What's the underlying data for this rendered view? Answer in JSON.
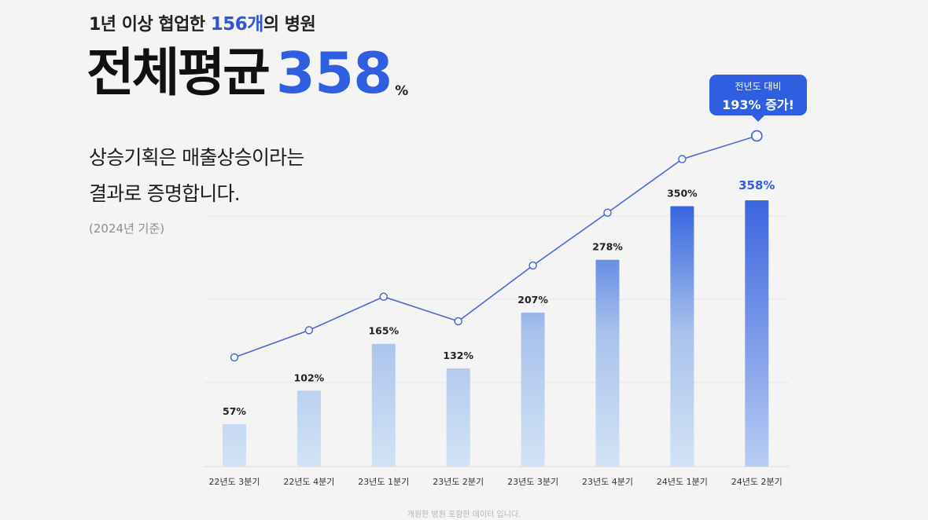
{
  "header": {
    "top_prefix": "1년 이상 협업한 ",
    "top_count": "156개",
    "top_suffix": "의 병원",
    "title_label": "전체평균",
    "title_value": "358",
    "title_unit": "%",
    "subtitle_line1": "상승기획은 매출상승이라는",
    "subtitle_line2": "결과로 증명합니다.",
    "basis": "(2024년 기준)"
  },
  "callout": {
    "line1": "전년도 대비",
    "line2": "193% 증가!"
  },
  "footnote": "개원한 병원 포함한 데이터 입니다.",
  "colors": {
    "accent": "#2f5ee0",
    "bar_light": "#d3e3f6",
    "bar_dark": "#2f5ee0",
    "line": "#4a69d6"
  },
  "chart_data": {
    "type": "bar",
    "categories": [
      "22년도 3분기",
      "22년도 4분기",
      "23년도 1분기",
      "23년도 2분기",
      "23년도 3분기",
      "23년도 4분기",
      "24년도 1분기",
      "24년도 2분기"
    ],
    "values": [
      57,
      102,
      165,
      132,
      207,
      278,
      350,
      358
    ],
    "value_labels": [
      "57%",
      "102%",
      "165%",
      "132%",
      "207%",
      "278%",
      "350%",
      "358%"
    ],
    "line_overlay": true,
    "ylim": [
      0,
      380
    ],
    "grid": true,
    "legend": "none"
  }
}
